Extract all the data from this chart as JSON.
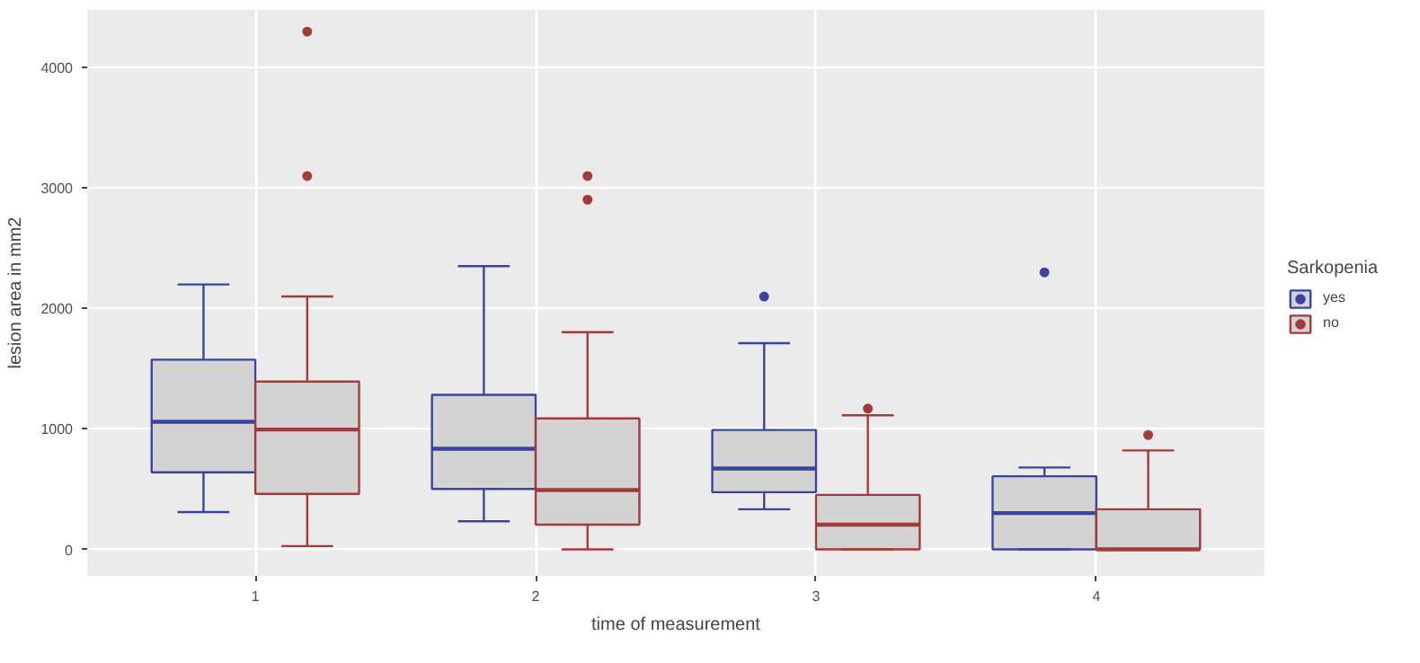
{
  "chart_data": {
    "type": "box",
    "xlabel": "time of measurement",
    "ylabel": "lesion area in mm2",
    "legend_title": "Sarkopenia",
    "categories": [
      "1",
      "2",
      "3",
      "4"
    ],
    "ylim": [
      -220,
      4480
    ],
    "yticks": [
      0,
      1000,
      2000,
      3000,
      4000
    ],
    "grid": true,
    "legend": "right",
    "series": [
      {
        "name": "yes",
        "color": "#3b45a0",
        "boxes": [
          {
            "low": 310,
            "q1": 640,
            "median": 1060,
            "q3": 1575,
            "high": 2200
          },
          {
            "low": 233,
            "q1": 502,
            "median": 836,
            "q3": 1283,
            "high": 2352
          },
          {
            "low": 333,
            "q1": 475,
            "median": 671,
            "q3": 991,
            "high": 1712,
            "outliers": [
              2100
            ]
          },
          {
            "low": 0,
            "q1": 0,
            "median": 301,
            "q3": 607,
            "high": 680,
            "outliers": [
              2300
            ]
          }
        ]
      },
      {
        "name": "no",
        "color": "#a33b3b",
        "boxes": [
          {
            "low": 27,
            "q1": 461,
            "median": 995,
            "q3": 1393,
            "high": 2100,
            "outliers": [
              4300,
              3100
            ]
          },
          {
            "low": 0,
            "q1": 205,
            "median": 493,
            "q3": 1087,
            "high": 1804,
            "outliers": [
              3100,
              2904
            ]
          },
          {
            "low": 0,
            "q1": 0,
            "median": 205,
            "q3": 452,
            "high": 1114,
            "outliers": [
              1169
            ]
          },
          {
            "low": 0,
            "q1": 0,
            "median": 0,
            "q3": 333,
            "high": 822,
            "outliers": [
              950
            ]
          }
        ]
      }
    ]
  }
}
